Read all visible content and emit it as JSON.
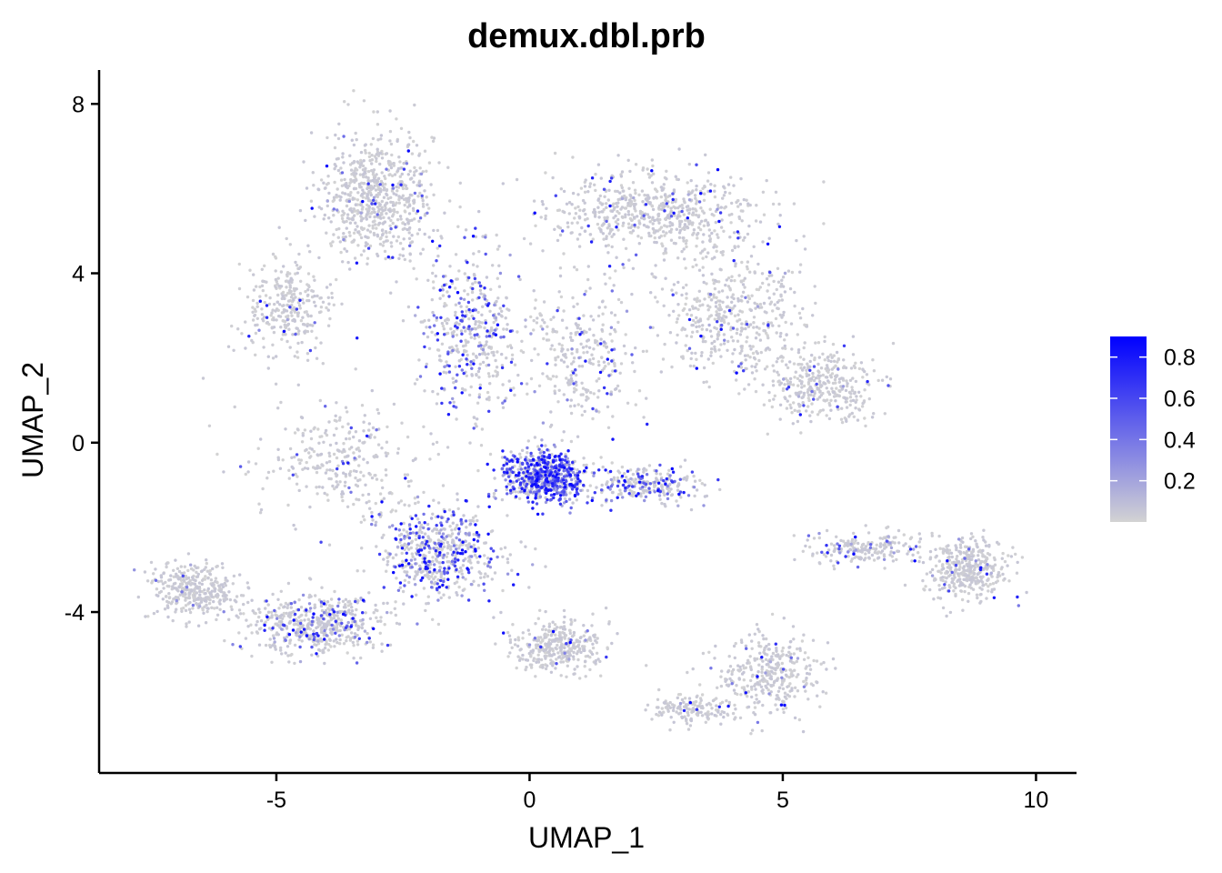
{
  "chart_data": {
    "type": "scatter",
    "title": "demux.dbl.prb",
    "xlabel": "UMAP_1",
    "ylabel": "UMAP_2",
    "xlim": [
      -8.5,
      10.8
    ],
    "ylim": [
      -7.8,
      8.8
    ],
    "x_ticks": [
      -5,
      0,
      5,
      10
    ],
    "x_tick_labels": [
      "-5",
      "0",
      "5",
      "10"
    ],
    "y_ticks": [
      -4,
      0,
      4,
      8
    ],
    "y_tick_labels": [
      "-4",
      "0",
      "4",
      "8"
    ],
    "grid": false,
    "legend_position": "right",
    "color_scale": {
      "low_color": "#d3d3d3",
      "high_color": "#0000ff",
      "min": 0.0,
      "max": 0.9,
      "breaks": [
        0.2,
        0.4,
        0.6,
        0.8
      ],
      "break_labels": [
        "0.2",
        "0.4",
        "0.6",
        "0.8"
      ]
    },
    "clusters": [
      {
        "center": [
          -3.0,
          5.8
        ],
        "spread": [
          0.9,
          1.3
        ],
        "n": 700,
        "mean_value": 0.06
      },
      {
        "center": [
          -4.8,
          3.2
        ],
        "spread": [
          0.7,
          1.0
        ],
        "n": 300,
        "mean_value": 0.05
      },
      {
        "center": [
          2.4,
          5.4
        ],
        "spread": [
          1.8,
          0.9
        ],
        "n": 650,
        "mean_value": 0.07
      },
      {
        "center": [
          4.0,
          3.0
        ],
        "spread": [
          1.2,
          1.2
        ],
        "n": 450,
        "mean_value": 0.06
      },
      {
        "center": [
          5.8,
          1.4
        ],
        "spread": [
          0.9,
          0.7
        ],
        "n": 350,
        "mean_value": 0.05
      },
      {
        "center": [
          -1.2,
          2.6
        ],
        "spread": [
          0.8,
          1.6
        ],
        "n": 450,
        "mean_value": 0.32
      },
      {
        "center": [
          0.3,
          -0.8
        ],
        "spread": [
          0.7,
          0.5
        ],
        "n": 650,
        "mean_value": 0.65
      },
      {
        "center": [
          -1.8,
          -2.6
        ],
        "spread": [
          1.0,
          0.9
        ],
        "n": 550,
        "mean_value": 0.38
      },
      {
        "center": [
          -4.2,
          -4.3
        ],
        "spread": [
          1.1,
          0.6
        ],
        "n": 550,
        "mean_value": 0.18
      },
      {
        "center": [
          -6.6,
          -3.5
        ],
        "spread": [
          0.7,
          0.5
        ],
        "n": 350,
        "mean_value": 0.04
      },
      {
        "center": [
          -3.8,
          -0.5
        ],
        "spread": [
          1.3,
          1.2
        ],
        "n": 300,
        "mean_value": 0.06
      },
      {
        "center": [
          0.5,
          -4.8
        ],
        "spread": [
          0.8,
          0.5
        ],
        "n": 350,
        "mean_value": 0.05
      },
      {
        "center": [
          4.7,
          -5.5
        ],
        "spread": [
          0.9,
          0.8
        ],
        "n": 350,
        "mean_value": 0.04
      },
      {
        "center": [
          3.2,
          -6.3
        ],
        "spread": [
          0.7,
          0.3
        ],
        "n": 150,
        "mean_value": 0.04
      },
      {
        "center": [
          8.6,
          -3.0
        ],
        "spread": [
          0.7,
          0.6
        ],
        "n": 400,
        "mean_value": 0.04
      },
      {
        "center": [
          6.6,
          -2.5
        ],
        "spread": [
          1.0,
          0.3
        ],
        "n": 200,
        "mean_value": 0.12
      },
      {
        "center": [
          2.3,
          -1.0
        ],
        "spread": [
          0.9,
          0.4
        ],
        "n": 250,
        "mean_value": 0.35
      },
      {
        "center": [
          1.0,
          2.0
        ],
        "spread": [
          1.0,
          1.4
        ],
        "n": 300,
        "mean_value": 0.12
      }
    ]
  }
}
